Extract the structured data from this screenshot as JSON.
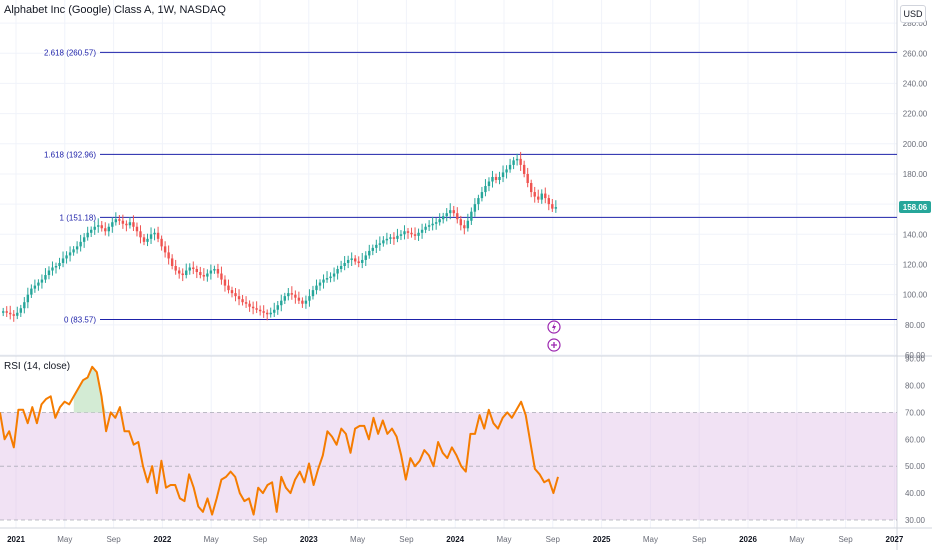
{
  "title": "Alphabet Inc (Google) Class A, 1W, NASDAQ",
  "currency": "USD",
  "rsi_title": "RSI (14, close)",
  "colors": {
    "up": "#26a69a",
    "down": "#ef5350",
    "fib_line": "#1e22aa",
    "fib_label": "#1e22aa",
    "rsi_line": "#f57c00",
    "rsi_band": "#e1bee7",
    "overbought_fill": "#c8e6c9",
    "price_badge": "#26a69a",
    "event_icon": "#9c27b0"
  },
  "chart_data": [
    {
      "type": "candlestick",
      "y_axis_ticks": [
        "280.00",
        "260.00",
        "240.00",
        "220.00",
        "200.00",
        "180.00",
        "160.00",
        "140.00",
        "120.00",
        "100.00",
        "80.00",
        "60.00"
      ],
      "ylim": [
        60,
        290
      ],
      "x_axis_ticks": [
        "2021",
        "May",
        "Sep",
        "2022",
        "May",
        "Sep",
        "2023",
        "May",
        "Sep",
        "2024",
        "May",
        "Sep",
        "2025",
        "May",
        "Sep",
        "2026",
        "May",
        "Sep",
        "2027"
      ],
      "last_price": "158.06",
      "fib_levels": [
        {
          "label": "2.618 (260.57)",
          "value": 260.57
        },
        {
          "label": "1.618 (192.96)",
          "value": 192.96
        },
        {
          "label": "1 (151.18)",
          "value": 151.18
        },
        {
          "label": "0 (83.57)",
          "value": 83.57
        }
      ],
      "close_series": [
        89,
        88,
        87,
        86,
        88,
        91,
        95,
        100,
        104,
        106,
        108,
        110,
        113,
        116,
        118,
        119,
        121,
        124,
        126,
        128,
        130,
        132,
        135,
        138,
        141,
        143,
        145,
        146,
        144,
        142,
        145,
        148,
        150,
        149,
        147,
        146,
        148,
        145,
        142,
        138,
        135,
        137,
        140,
        141,
        137,
        132,
        128,
        124,
        119,
        116,
        114,
        113,
        116,
        118,
        117,
        115,
        113,
        112,
        114,
        116,
        117,
        114,
        110,
        106,
        103,
        101,
        99,
        97,
        95,
        94,
        92,
        91,
        90,
        89,
        88,
        87,
        88,
        90,
        93,
        96,
        99,
        101,
        100,
        98,
        96,
        94,
        96,
        99,
        103,
        106,
        108,
        110,
        111,
        112,
        114,
        117,
        119,
        121,
        123,
        124,
        122,
        121,
        123,
        126,
        129,
        131,
        133,
        134,
        136,
        137,
        138,
        137,
        139,
        140,
        142,
        141,
        140,
        139,
        141,
        143,
        145,
        146,
        147,
        148,
        150,
        152,
        154,
        156,
        154,
        150,
        146,
        144,
        149,
        155,
        160,
        164,
        168,
        172,
        175,
        178,
        176,
        178,
        181,
        183,
        186,
        189,
        190,
        186,
        180,
        174,
        168,
        165,
        163,
        167,
        164,
        160,
        157,
        158
      ]
    },
    {
      "type": "line",
      "name": "RSI (14, close)",
      "y_axis_ticks": [
        "90.00",
        "80.00",
        "70.00",
        "60.00",
        "50.00",
        "40.00",
        "30.00"
      ],
      "ylim": [
        27,
        91
      ],
      "band": [
        30,
        70
      ],
      "midline": 50,
      "values": [
        70,
        60,
        63,
        57,
        71,
        71,
        66,
        72,
        66,
        73,
        75,
        76,
        68,
        72,
        74,
        73,
        76,
        79,
        82,
        83,
        87,
        85,
        76,
        63,
        70,
        68,
        72,
        63,
        63,
        58,
        59,
        50,
        44,
        50,
        40,
        52,
        42,
        43,
        43,
        38,
        37,
        47,
        42,
        35,
        33,
        38,
        32,
        38,
        45,
        46,
        48,
        46,
        40,
        37,
        38,
        32,
        42,
        40,
        43,
        44,
        33,
        46,
        42,
        40,
        45,
        48,
        44,
        51,
        43,
        49,
        54,
        63,
        61,
        58,
        64,
        62,
        55,
        64,
        65,
        65,
        60,
        68,
        62,
        67,
        62,
        64,
        61,
        54,
        45,
        53,
        50,
        52,
        56,
        54,
        50,
        59,
        55,
        53,
        57,
        54,
        50,
        48,
        62,
        62,
        69,
        64,
        71,
        66,
        64,
        68,
        70,
        68,
        71,
        74,
        69,
        59,
        49,
        47,
        44,
        45,
        40,
        46
      ]
    }
  ]
}
